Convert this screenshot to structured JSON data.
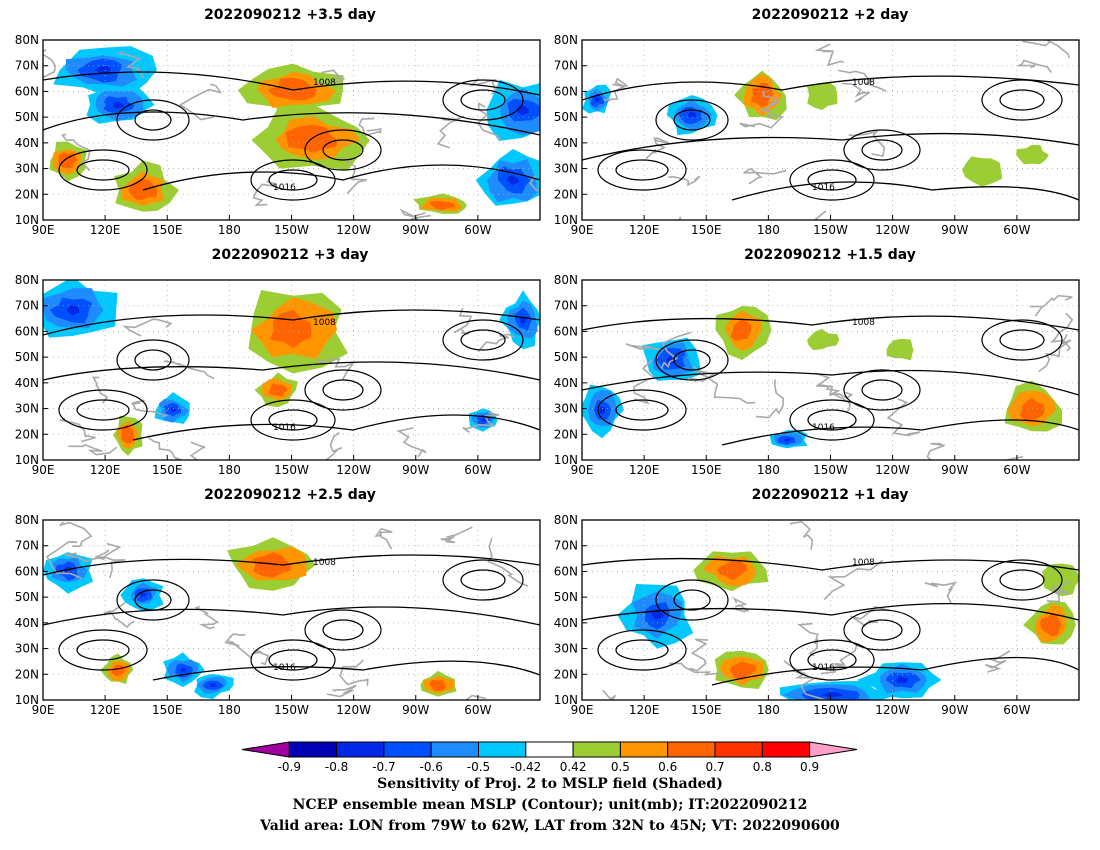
{
  "panels": [
    {
      "title": "2022090212  +3.5 day",
      "col": 0,
      "row": 0
    },
    {
      "title": "2022090212  +2 day",
      "col": 1,
      "row": 0
    },
    {
      "title": "2022090212  +3 day",
      "col": 0,
      "row": 1
    },
    {
      "title": "2022090212  +1.5 day",
      "col": 1,
      "row": 1
    },
    {
      "title": "2022090212  +2.5 day",
      "col": 0,
      "row": 2
    },
    {
      "title": "2022090212  +1 day",
      "col": 1,
      "row": 2
    }
  ],
  "axes": {
    "lat_labels": [
      "10N",
      "20N",
      "30N",
      "40N",
      "50N",
      "60N",
      "70N",
      "80N"
    ],
    "lon_labels": [
      "90E",
      "120E",
      "150E",
      "180",
      "150W",
      "120W",
      "90W",
      "60W"
    ]
  },
  "contour_labels": [
    "1008",
    "1016"
  ],
  "colorbar": {
    "ticks": [
      "-0.9",
      "-0.8",
      "-0.7",
      "-0.6",
      "-0.5",
      "-0.42",
      "0.42",
      "0.5",
      "0.6",
      "0.7",
      "0.8",
      "0.9"
    ],
    "colors": [
      "#a000a0",
      "#0000b4",
      "#0028e6",
      "#0050ff",
      "#1e8cff",
      "#00c8ff",
      "#ffffff",
      "#9ccd32",
      "#ff9600",
      "#ff6400",
      "#ff3200",
      "#ff0000",
      "#ffa0c8"
    ]
  },
  "caption": {
    "line1": "Sensitivity of Proj. 2 to MSLP field (Shaded)",
    "line2": "NCEP ensemble mean MSLP (Contour); unit(mb); IT:2022090212",
    "line3": "Valid area: LON from 79W to 62W, LAT from 32N to 45N; VT: 2022090600"
  }
}
